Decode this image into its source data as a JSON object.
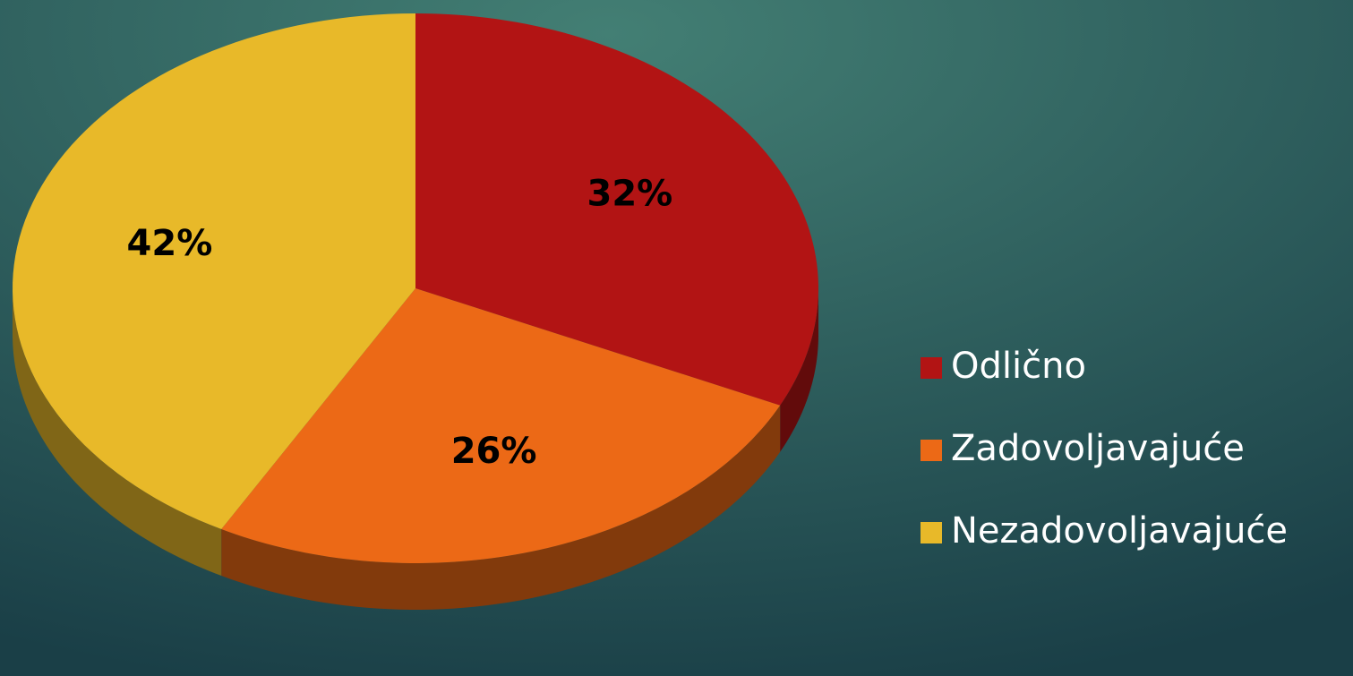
{
  "chart_data": {
    "type": "pie",
    "categories": [
      "Odlično",
      "Zadovoljavajuće",
      "Nezadovoljavajuće"
    ],
    "values": [
      32,
      26,
      42
    ],
    "value_labels": [
      "32%",
      "26%",
      "42%"
    ],
    "colors": [
      "#b21414",
      "#ec6916",
      "#e8b929"
    ],
    "legend": "right"
  }
}
